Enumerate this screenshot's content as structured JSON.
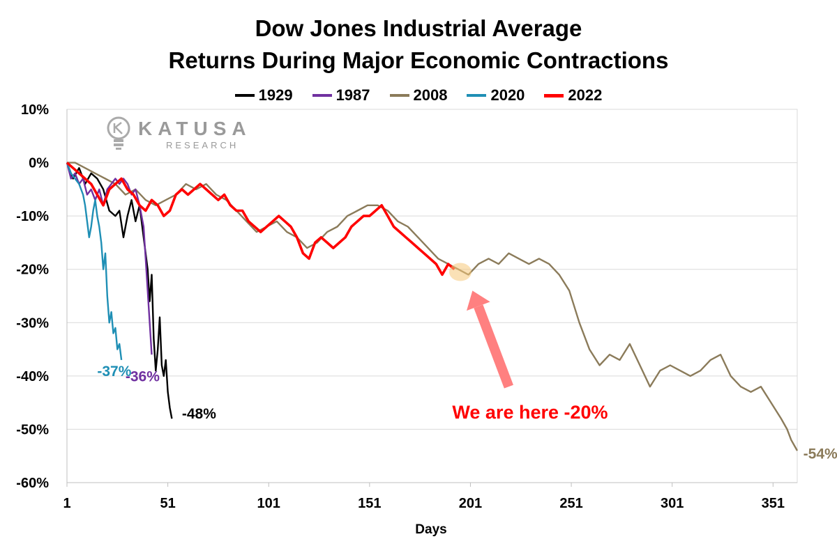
{
  "chart_data": {
    "type": "line",
    "title": "Dow Jones Industrial Average",
    "subtitle": "Returns During Major Economic Contractions",
    "xlabel": "Days",
    "ylabel": "",
    "xlim": [
      1,
      363
    ],
    "ylim": [
      -60,
      10
    ],
    "x_ticks": [
      1,
      51,
      101,
      151,
      201,
      251,
      301,
      351
    ],
    "y_ticks": [
      10,
      0,
      -10,
      -20,
      -30,
      -40,
      -50,
      -60
    ],
    "y_tick_labels": [
      "10%",
      "0%",
      "-10%",
      "-20%",
      "-30%",
      "-40%",
      "-50%",
      "-60%"
    ],
    "grid": "horizontal",
    "legend_position": "top",
    "series": [
      {
        "name": "1929",
        "color": "#000000",
        "points": [
          [
            1,
            0
          ],
          [
            4,
            -3
          ],
          [
            7,
            -1
          ],
          [
            10,
            -4
          ],
          [
            13,
            -2
          ],
          [
            16,
            -3
          ],
          [
            19,
            -5
          ],
          [
            22,
            -9
          ],
          [
            25,
            -10
          ],
          [
            27,
            -9
          ],
          [
            29,
            -14
          ],
          [
            31,
            -10
          ],
          [
            33,
            -7
          ],
          [
            35,
            -11
          ],
          [
            37,
            -8
          ],
          [
            39,
            -14
          ],
          [
            41,
            -20
          ],
          [
            42,
            -26
          ],
          [
            43,
            -21
          ],
          [
            44,
            -33
          ],
          [
            45,
            -39
          ],
          [
            46,
            -35
          ],
          [
            47,
            -29
          ],
          [
            48,
            -38
          ],
          [
            49,
            -40
          ],
          [
            50,
            -37
          ],
          [
            51,
            -43
          ],
          [
            52,
            -46
          ],
          [
            53,
            -48
          ]
        ]
      },
      {
        "name": "1987",
        "color": "#7030A0",
        "points": [
          [
            1,
            0
          ],
          [
            3,
            -3
          ],
          [
            5,
            -2
          ],
          [
            7,
            -4
          ],
          [
            9,
            -3
          ],
          [
            11,
            -6
          ],
          [
            13,
            -5
          ],
          [
            15,
            -7
          ],
          [
            17,
            -5
          ],
          [
            19,
            -8
          ],
          [
            21,
            -5
          ],
          [
            23,
            -4
          ],
          [
            25,
            -3
          ],
          [
            27,
            -4
          ],
          [
            29,
            -3
          ],
          [
            31,
            -4
          ],
          [
            33,
            -6
          ],
          [
            35,
            -5
          ],
          [
            37,
            -8
          ],
          [
            39,
            -12
          ],
          [
            40,
            -18
          ],
          [
            41,
            -24
          ],
          [
            42,
            -30
          ],
          [
            43,
            -36
          ]
        ]
      },
      {
        "name": "2008",
        "color": "#8B7B5A",
        "points": [
          [
            1,
            0
          ],
          [
            5,
            0
          ],
          [
            10,
            -1
          ],
          [
            15,
            -2
          ],
          [
            20,
            -3
          ],
          [
            25,
            -4
          ],
          [
            30,
            -6
          ],
          [
            35,
            -5
          ],
          [
            40,
            -7
          ],
          [
            45,
            -8
          ],
          [
            50,
            -7
          ],
          [
            55,
            -6
          ],
          [
            60,
            -4
          ],
          [
            65,
            -5
          ],
          [
            70,
            -4
          ],
          [
            75,
            -6
          ],
          [
            80,
            -7
          ],
          [
            85,
            -9
          ],
          [
            90,
            -11
          ],
          [
            95,
            -13
          ],
          [
            100,
            -12
          ],
          [
            105,
            -11
          ],
          [
            110,
            -13
          ],
          [
            115,
            -14
          ],
          [
            120,
            -16
          ],
          [
            125,
            -15
          ],
          [
            130,
            -13
          ],
          [
            135,
            -12
          ],
          [
            140,
            -10
          ],
          [
            145,
            -9
          ],
          [
            150,
            -8
          ],
          [
            155,
            -8
          ],
          [
            160,
            -9
          ],
          [
            165,
            -11
          ],
          [
            170,
            -12
          ],
          [
            175,
            -14
          ],
          [
            180,
            -16
          ],
          [
            185,
            -18
          ],
          [
            190,
            -19
          ],
          [
            195,
            -20
          ],
          [
            200,
            -21
          ],
          [
            205,
            -19
          ],
          [
            210,
            -18
          ],
          [
            215,
            -19
          ],
          [
            220,
            -17
          ],
          [
            225,
            -18
          ],
          [
            230,
            -19
          ],
          [
            235,
            -18
          ],
          [
            240,
            -19
          ],
          [
            245,
            -21
          ],
          [
            250,
            -24
          ],
          [
            255,
            -30
          ],
          [
            260,
            -35
          ],
          [
            265,
            -38
          ],
          [
            270,
            -36
          ],
          [
            275,
            -37
          ],
          [
            280,
            -34
          ],
          [
            285,
            -38
          ],
          [
            290,
            -42
          ],
          [
            295,
            -39
          ],
          [
            300,
            -38
          ],
          [
            305,
            -39
          ],
          [
            310,
            -40
          ],
          [
            315,
            -39
          ],
          [
            320,
            -37
          ],
          [
            325,
            -36
          ],
          [
            330,
            -40
          ],
          [
            335,
            -42
          ],
          [
            340,
            -43
          ],
          [
            345,
            -42
          ],
          [
            350,
            -45
          ],
          [
            355,
            -48
          ],
          [
            358,
            -50
          ],
          [
            360,
            -52
          ],
          [
            363,
            -54
          ]
        ]
      },
      {
        "name": "2020",
        "color": "#1F8FB5",
        "points": [
          [
            1,
            0
          ],
          [
            3,
            -2
          ],
          [
            5,
            -3
          ],
          [
            7,
            -4
          ],
          [
            9,
            -6
          ],
          [
            10,
            -8
          ],
          [
            11,
            -11
          ],
          [
            12,
            -14
          ],
          [
            13,
            -12
          ],
          [
            14,
            -9
          ],
          [
            15,
            -7
          ],
          [
            16,
            -10
          ],
          [
            17,
            -12
          ],
          [
            18,
            -15
          ],
          [
            19,
            -20
          ],
          [
            20,
            -17
          ],
          [
            21,
            -25
          ],
          [
            22,
            -30
          ],
          [
            23,
            -28
          ],
          [
            24,
            -32
          ],
          [
            25,
            -31
          ],
          [
            26,
            -35
          ],
          [
            27,
            -34
          ],
          [
            28,
            -37
          ]
        ]
      },
      {
        "name": "2022",
        "color": "#FF0000",
        "points": [
          [
            1,
            0
          ],
          [
            4,
            -1
          ],
          [
            7,
            -2
          ],
          [
            10,
            -3
          ],
          [
            13,
            -4
          ],
          [
            16,
            -6
          ],
          [
            19,
            -8
          ],
          [
            22,
            -5
          ],
          [
            25,
            -4
          ],
          [
            28,
            -3
          ],
          [
            31,
            -5
          ],
          [
            34,
            -6
          ],
          [
            37,
            -8
          ],
          [
            40,
            -9
          ],
          [
            43,
            -7
          ],
          [
            46,
            -8
          ],
          [
            49,
            -10
          ],
          [
            52,
            -9
          ],
          [
            55,
            -6
          ],
          [
            58,
            -5
          ],
          [
            61,
            -6
          ],
          [
            64,
            -5
          ],
          [
            67,
            -4
          ],
          [
            70,
            -5
          ],
          [
            73,
            -6
          ],
          [
            76,
            -7
          ],
          [
            79,
            -6
          ],
          [
            82,
            -8
          ],
          [
            85,
            -9
          ],
          [
            88,
            -9
          ],
          [
            91,
            -11
          ],
          [
            94,
            -12
          ],
          [
            97,
            -13
          ],
          [
            100,
            -12
          ],
          [
            103,
            -11
          ],
          [
            106,
            -10
          ],
          [
            109,
            -11
          ],
          [
            112,
            -12
          ],
          [
            115,
            -14
          ],
          [
            118,
            -17
          ],
          [
            121,
            -18
          ],
          [
            124,
            -15
          ],
          [
            127,
            -14
          ],
          [
            130,
            -15
          ],
          [
            133,
            -16
          ],
          [
            136,
            -15
          ],
          [
            139,
            -14
          ],
          [
            142,
            -12
          ],
          [
            145,
            -11
          ],
          [
            148,
            -10
          ],
          [
            151,
            -10
          ],
          [
            154,
            -9
          ],
          [
            157,
            -8
          ],
          [
            160,
            -10
          ],
          [
            163,
            -12
          ],
          [
            166,
            -13
          ],
          [
            169,
            -14
          ],
          [
            172,
            -15
          ],
          [
            175,
            -16
          ],
          [
            178,
            -17
          ],
          [
            181,
            -18
          ],
          [
            184,
            -19
          ],
          [
            187,
            -21
          ],
          [
            190,
            -19
          ],
          [
            193,
            -20
          ]
        ]
      }
    ],
    "annotations": [
      {
        "text": "-37%",
        "x": 16,
        "y": -40,
        "color": "#1F8FB5"
      },
      {
        "text": "-36%",
        "x": 30,
        "y": -41,
        "color": "#7030A0"
      },
      {
        "text": "-48%",
        "x": 58,
        "y": -48,
        "color": "#000000"
      },
      {
        "text": "We are here  -20%",
        "x": 192,
        "y": -48,
        "color": "#FF0000"
      },
      {
        "text": "-54%",
        "x": 366,
        "y": -55.5,
        "color": "#8B7B5A"
      }
    ],
    "marker": {
      "x": 196,
      "y": -20.5
    },
    "arrow": {
      "from": [
        220,
        -42
      ],
      "to": [
        202,
        -24
      ],
      "color": "#FF8080"
    }
  },
  "watermark": {
    "brand": "KATUSA",
    "sub": "RESEARCH"
  }
}
